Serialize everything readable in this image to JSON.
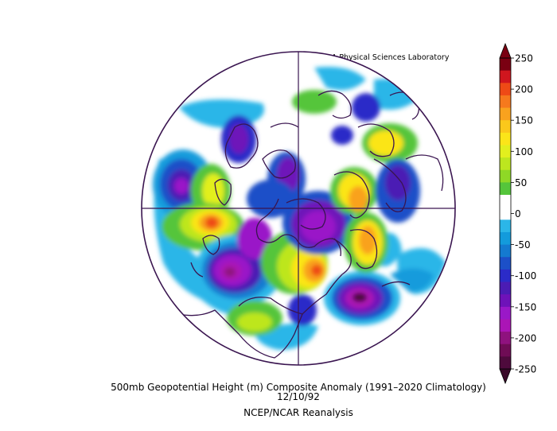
{
  "credit": "NOAA Physical Sciences Laboratory",
  "title": "500mb Geopotential Height (m) Composite Anomaly (1991–2020 Climatology)",
  "date": "12/10/92",
  "source": "NCEP/NCAR Reanalysis",
  "colorbar": {
    "labels": [
      "250",
      "200",
      "150",
      "100",
      "50",
      "0",
      "-50",
      "-100",
      "-150",
      "-200",
      "-250"
    ],
    "colors": [
      "#7a0012",
      "#d0161e",
      "#ee4a16",
      "#f6791d",
      "#f9a21e",
      "#fbc81b",
      "#fbe519",
      "#e2ef1e",
      "#bde61f",
      "#8fd826",
      "#55c53b",
      "#ffffff",
      "#ffffff",
      "#2bb6e8",
      "#139bdc",
      "#147ad0",
      "#1c50c8",
      "#2b2bc8",
      "#4b1cb4",
      "#6e12b9",
      "#9a18c8",
      "#ab15b6",
      "#8f127e",
      "#6f0c55",
      "#4e0a3c"
    ]
  },
  "map": {
    "projection": "north-polar-stereographic",
    "region": "Northern Hemisphere",
    "coastline_color": "#3a1550",
    "anomaly_centers": [
      {
        "sign": "negative",
        "region": "central North Pacific",
        "value": -150
      },
      {
        "sign": "negative",
        "region": "northeast Pacific / Gulf of Alaska",
        "value": -150
      },
      {
        "sign": "positive",
        "region": "East Asia / Japan",
        "value": 200
      },
      {
        "sign": "positive",
        "region": "western Europe / North Atlantic",
        "value": 150
      },
      {
        "sign": "positive",
        "region": "Alaska / Bering",
        "value": 150
      },
      {
        "sign": "negative",
        "region": "northwestern Atlantic off North America",
        "value": -200
      },
      {
        "sign": "negative",
        "region": "Arctic / Greenland",
        "value": -150
      },
      {
        "sign": "positive",
        "region": "northern Asia",
        "value": 100
      }
    ]
  }
}
